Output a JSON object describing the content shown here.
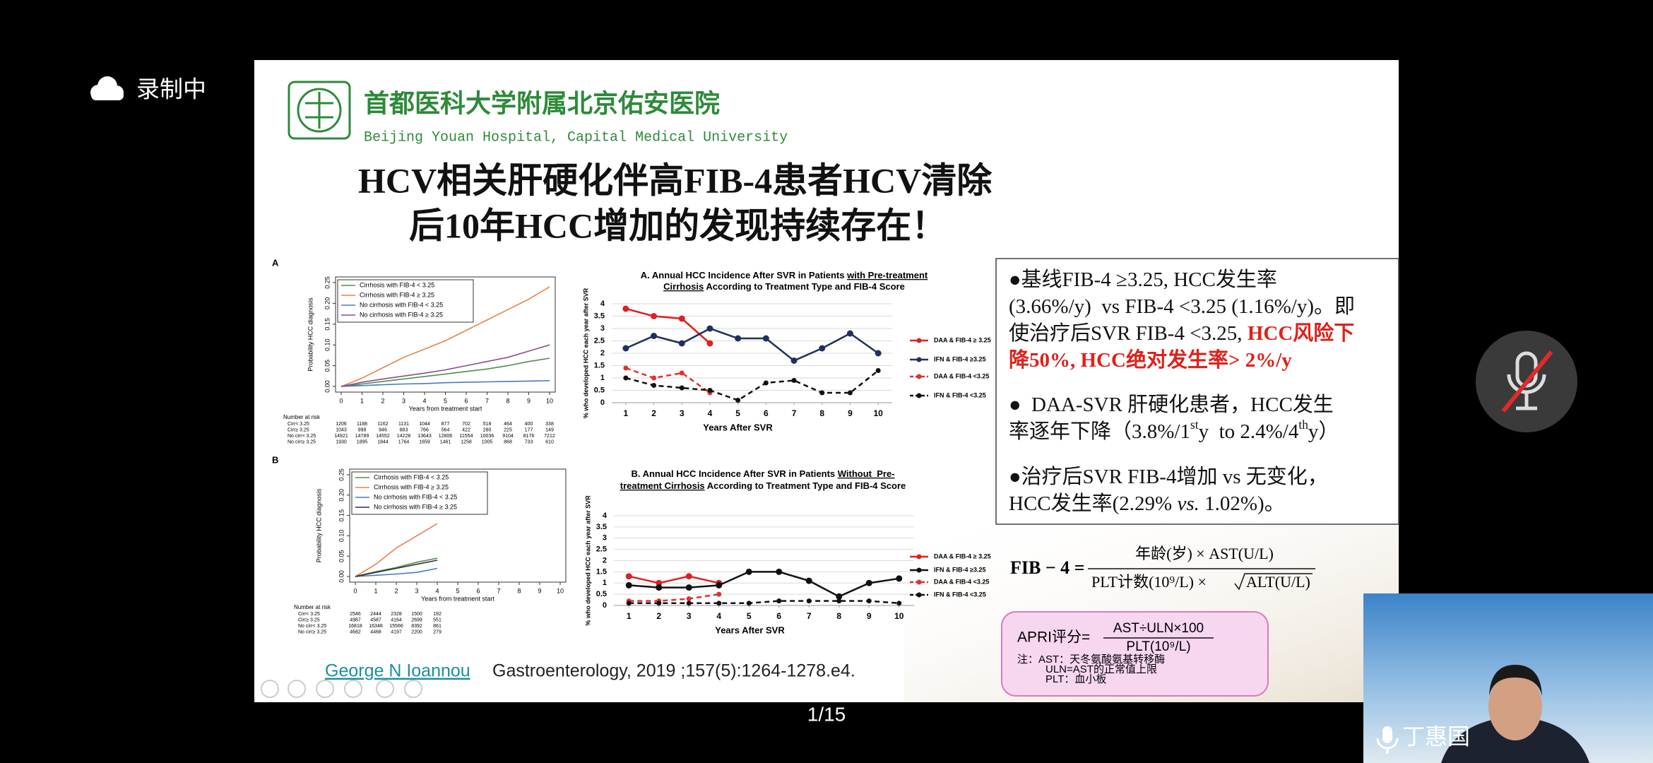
{
  "recording_status": "录制中",
  "slide": {
    "hospital": {
      "name_cn": "首都医科大学附属北京佑安医院",
      "name_en": "Beijing Youan Hospital, Capital Medical University"
    },
    "title": [
      "HCV相关肝硬化伴高FIB-4患者HCV清除",
      "后10年HCC增加的发现持续存在！"
    ],
    "km_charts": [
      {
        "panel": "A",
        "type": "line",
        "y_label": "Probability HCC diagnosis",
        "x_label": "Years from treatment start",
        "xlim": [
          0,
          10
        ],
        "xticks": [
          0,
          1,
          2,
          3,
          4,
          5,
          6,
          7,
          8,
          9,
          10
        ],
        "ylim": [
          0,
          0.25
        ],
        "yticks": [
          {
            "value": 0,
            "label": "0.00"
          },
          {
            "value": 0.05,
            "label": "0.05"
          },
          {
            "value": 0.1,
            "label": "0.10"
          },
          {
            "value": 0.15,
            "label": "0.15"
          },
          {
            "value": 0.2,
            "label": "0.20"
          },
          {
            "value": 0.25,
            "label": "0.25"
          }
        ],
        "x": [
          0,
          1,
          2,
          3,
          4,
          5,
          6,
          7,
          8,
          9,
          10
        ],
        "series": [
          {
            "name": "Cirrhosis with FIB-4 < 3.25",
            "color": "#4f8f4f",
            "values": [
              0,
              0.006,
              0.012,
              0.018,
              0.024,
              0.03,
              0.036,
              0.042,
              0.05,
              0.06,
              0.068
            ]
          },
          {
            "name": "Cirrhosis with FIB-4 ≥ 3.25",
            "color": "#e8834a",
            "values": [
              0,
              0.02,
              0.045,
              0.07,
              0.09,
              0.11,
              0.135,
              0.16,
              0.185,
              0.21,
              0.24
            ]
          },
          {
            "name": "No cirrhosis with FIB-4 < 3.25",
            "color": "#4a7ab8",
            "values": [
              0,
              0.002,
              0.004,
              0.006,
              0.007,
              0.009,
              0.01,
              0.011,
              0.012,
              0.013,
              0.014
            ]
          },
          {
            "name": "No cirrhosis with FIB-4 ≥ 3.25",
            "color": "#8a4f8a",
            "values": [
              0,
              0.01,
              0.018,
              0.025,
              0.032,
              0.04,
              0.05,
              0.06,
              0.07,
              0.085,
              0.1
            ]
          }
        ],
        "risk_table": {
          "title": "Number at risk",
          "rows": [
            {
              "label": "Cirr< 3.25",
              "values": [
                1206,
                1188,
                1162,
                1131,
                1044,
                877,
                702,
                518,
                464,
                400,
                338
              ]
            },
            {
              "label": "Cirr≥ 3.25",
              "values": [
                1043,
                998,
                946,
                883,
                766,
                564,
                422,
                280,
                225,
                177,
                149
              ]
            },
            {
              "label": "No cirr< 3.25",
              "values": [
                14921,
                14789,
                14552,
                14228,
                13643,
                12806,
                11554,
                10036,
                9104,
                8176,
                7212
              ]
            },
            {
              "label": "No cirr≥ 3.25",
              "values": [
                1930,
                1895,
                1844,
                1764,
                1659,
                1461,
                1258,
                1005,
                868,
                733,
                610
              ]
            }
          ]
        }
      },
      {
        "panel": "B",
        "type": "line",
        "y_label": "Probability HCC diagnosis",
        "x_label": "Years from treatment start",
        "xlim": [
          0,
          10
        ],
        "xticks": [
          0,
          1,
          2,
          3,
          4,
          5,
          6,
          7,
          8,
          9,
          10
        ],
        "ylim": [
          0,
          0.25
        ],
        "yticks": [
          {
            "value": 0,
            "label": "0.00"
          },
          {
            "value": 0.05,
            "label": "0.05"
          },
          {
            "value": 0.1,
            "label": "0.10"
          },
          {
            "value": 0.15,
            "label": "0.15"
          },
          {
            "value": 0.2,
            "label": "0.20"
          },
          {
            "value": 0.25,
            "label": "0.25"
          }
        ],
        "x": [
          0,
          1,
          2,
          3,
          4
        ],
        "series": [
          {
            "name": "Cirrhosis with FIB-4 < 3.25",
            "color": "#4f8f4f",
            "values": [
              0,
              0.012,
              0.022,
              0.035,
              0.045
            ]
          },
          {
            "name": "Cirrhosis with FIB-4 ≥ 3.25",
            "color": "#e8834a",
            "values": [
              0,
              0.03,
              0.07,
              0.1,
              0.13
            ]
          },
          {
            "name": "No cirrhosis with FIB-4 < 3.25",
            "color": "#4a7ab8",
            "values": [
              0,
              0.003,
              0.006,
              0.01,
              0.02
            ]
          },
          {
            "name": "No cirrhosis with FIB-4 ≥ 3.25",
            "color": "#333333",
            "values": [
              0,
              0.01,
              0.02,
              0.03,
              0.04
            ]
          }
        ],
        "risk_table": {
          "title": "Number at risk",
          "rows": [
            {
              "label": "Cirr< 3.25",
              "values": [
                2546,
                2444,
                2328,
                1500,
                192
              ]
            },
            {
              "label": "Cirr≥ 3.25",
              "values": [
                4987,
                4587,
                4164,
                2699,
                551
              ]
            },
            {
              "label": "No cirr< 3.25",
              "values": [
                16818,
                16348,
                15566,
                8392,
                861
              ]
            },
            {
              "label": "No cirr≥ 3.25",
              "values": [
                4682,
                4468,
                4197,
                2200,
                279
              ]
            }
          ]
        }
      }
    ],
    "annual_charts": [
      {
        "type": "line",
        "title": [
          [
            {
              "text": "A. Annual HCC Incidence After SVR in Patients "
            },
            {
              "text": "with Pre-treatment",
              "underline": true
            }
          ],
          [
            {
              "text": "Cirrhosis",
              "underline": true
            },
            {
              "text": " According to Treatment Type and FIB-4 Score"
            }
          ]
        ],
        "y_label": "% who developed HCC each year after SVR",
        "x_label": "Years After SVR",
        "xlim": [
          0.5,
          10.5
        ],
        "xticks": [
          1,
          2,
          3,
          4,
          5,
          6,
          7,
          8,
          9,
          10
        ],
        "ylim": [
          0,
          4
        ],
        "yticks": [
          0,
          0.5,
          1,
          1.5,
          2,
          2.5,
          3,
          3.5,
          4
        ],
        "grid": true,
        "x": [
          1,
          2,
          3,
          4,
          5,
          6,
          7,
          8,
          9,
          10
        ],
        "series": [
          {
            "name": "DAA & FIB-4 ≥ 3.25",
            "color": "#e02020",
            "dash": false,
            "values": [
              3.8,
              3.5,
              3.4,
              2.4,
              null,
              null,
              null,
              null,
              null,
              null
            ]
          },
          {
            "name": "IFN & FIB-4 ≥3.25",
            "color": "#1f2f5f",
            "dash": false,
            "values": [
              2.2,
              2.7,
              2.4,
              3.0,
              2.6,
              2.6,
              1.7,
              2.2,
              2.8,
              2.0
            ]
          },
          {
            "name": "DAA & FIB-4 <3.25",
            "color": "#e03030",
            "dash": true,
            "values": [
              1.4,
              1.0,
              1.2,
              0.4,
              null,
              null,
              null,
              null,
              null,
              null
            ]
          },
          {
            "name": "IFN & FIB-4 <3.25",
            "color": "#111111",
            "dash": true,
            "values": [
              1.0,
              0.7,
              0.6,
              0.5,
              0.1,
              0.8,
              0.9,
              0.4,
              0.4,
              1.3
            ]
          }
        ]
      },
      {
        "type": "line",
        "title": [
          [
            {
              "text": "B. Annual HCC Incidence After SVR in Patients "
            },
            {
              "text": "Without  Pre-",
              "underline": true
            }
          ],
          [
            {
              "text": "treatment Cirrhosis",
              "underline": true
            },
            {
              "text": " According to Treatment Type and FIB-4 Score"
            }
          ]
        ],
        "y_label": "% who developed HCC each year after SVR",
        "x_label": "Years After SVR",
        "xlim": [
          0.5,
          10.5
        ],
        "xticks": [
          1,
          2,
          3,
          4,
          5,
          6,
          7,
          8,
          9,
          10
        ],
        "ylim": [
          0,
          4
        ],
        "yticks": [
          0,
          0.5,
          1,
          1.5,
          2,
          2.5,
          3,
          3.5,
          4
        ],
        "grid": true,
        "x": [
          1,
          2,
          3,
          4,
          5,
          6,
          7,
          8,
          9,
          10
        ],
        "series": [
          {
            "name": "DAA & FIB-4 ≥ 3.25",
            "color": "#e02020",
            "dash": false,
            "values": [
              1.3,
              1.0,
              1.3,
              1.0,
              null,
              null,
              null,
              null,
              null,
              null
            ]
          },
          {
            "name": "IFN & FIB-4 ≥3.25",
            "color": "#111111",
            "dash": false,
            "values": [
              0.9,
              0.8,
              0.8,
              0.9,
              1.5,
              1.5,
              1.1,
              0.4,
              1.0,
              1.2
            ]
          },
          {
            "name": "DAA & FIB-4 <3.25",
            "color": "#e03030",
            "dash": true,
            "values": [
              0.2,
              0.2,
              0.3,
              0.5,
              null,
              null,
              null,
              null,
              null,
              null
            ]
          },
          {
            "name": "IFN & FIB-4 <3.25",
            "color": "#111111",
            "dash": true,
            "values": [
              0.1,
              0.1,
              0.1,
              0.1,
              0.1,
              0.2,
              0.2,
              0.2,
              0.2,
              0.1
            ]
          }
        ]
      }
    ],
    "bullets": [
      [
        [
          {
            "text": "●基线FIB-4 ≥3.25, HCC发生率"
          }
        ],
        [
          {
            "text": "(3.66%/y)  vs FIB-4 <3.25 (1.16%/y)。即"
          }
        ],
        [
          {
            "text": "使治疗后SVR FIB-4 <3.25, "
          },
          {
            "text": "HCC风险下",
            "color": "#e0201a",
            "bold": true
          }
        ],
        [
          {
            "text": "降50%, HCC绝对发生率> 2%/y",
            "color": "#e0201a",
            "bold": true
          }
        ]
      ],
      [
        [
          {
            "text": "●  DAA-SVR 肝硬化患者，HCC发生"
          }
        ],
        [
          {
            "text": "率逐年下降（3.8%/1"
          },
          {
            "text": "st",
            "sup": true
          },
          {
            "text": "y  to 2.4%/4"
          },
          {
            "text": "th",
            "sup": true
          },
          {
            "text": "y）"
          }
        ]
      ],
      [
        [
          {
            "text": "●治疗后SVR FIB-4增加 vs 无变化，"
          }
        ],
        [
          {
            "text": "HCC发生率(2.29% "
          },
          {
            "text": "vs.",
            "italic": true
          },
          {
            "text": " 1.02%)。"
          }
        ]
      ]
    ],
    "fib4_formula": {
      "lhs": "FIB − 4 =",
      "numerator": "年龄(岁) × AST(U/L)",
      "denominator": "PLT计数(10⁹/L) ×",
      "denominator_root": "ALT(U/L)"
    },
    "apri": {
      "lhs": "APRI评分=",
      "numerator": "AST÷ULN×100",
      "denominator": "PLT(10⁹/L)",
      "notes": [
        "注：AST：天冬氨酸氨基转移酶",
        "ULN=AST的正常值上限",
        "PLT：血小板"
      ]
    },
    "citation": {
      "author": "George N Ioannou",
      "source": "Gastroenterology, 2019 ;157(5):1264-1278.e4."
    }
  },
  "pager": "1/15",
  "participant": "丁惠国"
}
